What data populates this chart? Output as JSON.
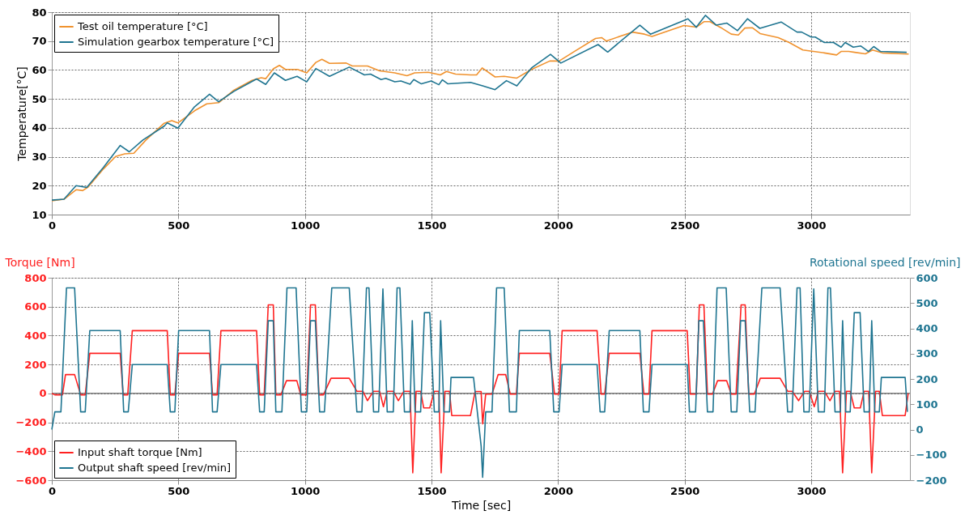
{
  "chart_data": [
    {
      "type": "line",
      "ylabel": "Temperature[°C]",
      "xlim": [
        0,
        3390
      ],
      "xticks": [
        0,
        500,
        1000,
        1500,
        2000,
        2500,
        3000
      ],
      "ylim": [
        10,
        80
      ],
      "yticks": [
        10,
        20,
        30,
        40,
        50,
        60,
        70,
        80
      ],
      "grid": true,
      "legend": "top left",
      "series": [
        {
          "name": "Test oil temperature [°C]",
          "color": "#f0922e",
          "x": [
            0,
            48,
            96,
            122,
            144,
            204,
            252,
            288,
            324,
            372,
            444,
            474,
            498,
            564,
            612,
            659,
            719,
            791,
            827,
            845,
            875,
            899,
            923,
            971,
            1007,
            1043,
            1067,
            1097,
            1163,
            1187,
            1247,
            1295,
            1355,
            1403,
            1433,
            1487,
            1535,
            1559,
            1595,
            1654,
            1678,
            1700,
            1751,
            1787,
            1837,
            1895,
            1967,
            2004,
            2064,
            2148,
            2172,
            2190,
            2293,
            2341,
            2371,
            2497,
            2546,
            2576,
            2600,
            2642,
            2684,
            2712,
            2738,
            2768,
            2798,
            2870,
            2913,
            2967,
            3052,
            3100,
            3118,
            3148,
            3172,
            3214,
            3242,
            3281,
            3385
          ],
          "values": [
            14.8,
            15.3,
            18.6,
            18.3,
            19.6,
            25.8,
            30.1,
            31,
            31.2,
            35.8,
            41.6,
            42.5,
            41.7,
            45.9,
            48.3,
            48.7,
            53,
            56.4,
            57.3,
            57,
            60.4,
            61.6,
            60.2,
            60.2,
            59,
            62.6,
            63.7,
            62.3,
            62.4,
            61.4,
            61.4,
            59.7,
            59,
            58,
            59,
            59.2,
            58.3,
            59.5,
            58.6,
            58.3,
            58.3,
            60.7,
            57.6,
            57.8,
            57.2,
            60.2,
            63.1,
            63.1,
            66.4,
            70.9,
            71.2,
            70,
            73.1,
            72.4,
            71.6,
            75.4,
            74.8,
            76.7,
            76.7,
            74.7,
            72.4,
            72.1,
            74.5,
            74.6,
            72.6,
            71.2,
            69.5,
            66.9,
            65.9,
            65.2,
            66.4,
            66.4,
            66.1,
            65.6,
            66.9,
            65.9,
            65.5
          ]
        },
        {
          "name": "Simulation gearbox temperature [°C]",
          "color": "#1f7591",
          "x": [
            0,
            48,
            96,
            138,
            204,
            270,
            306,
            360,
            444,
            456,
            498,
            564,
            623,
            659,
            719,
            809,
            845,
            879,
            923,
            969,
            1007,
            1043,
            1097,
            1175,
            1235,
            1259,
            1301,
            1319,
            1355,
            1379,
            1415,
            1430,
            1460,
            1499,
            1529,
            1543,
            1565,
            1654,
            1702,
            1751,
            1796,
            1837,
            1895,
            1970,
            2011,
            2158,
            2196,
            2323,
            2365,
            2513,
            2546,
            2582,
            2625,
            2667,
            2709,
            2748,
            2797,
            2881,
            2944,
            2962,
            3000,
            3016,
            3052,
            3088,
            3118,
            3134,
            3166,
            3196,
            3226,
            3247,
            3274,
            3377
          ],
          "values": [
            15,
            15.3,
            20,
            19.4,
            26.3,
            33.9,
            31.7,
            35.8,
            40.6,
            41.7,
            39.9,
            47.3,
            51.6,
            49,
            52.6,
            56.9,
            55,
            59,
            56.4,
            57.8,
            55.9,
            60.5,
            57.8,
            61,
            58.3,
            58.6,
            56.7,
            57.1,
            55.9,
            56.2,
            55.1,
            56.7,
            55.2,
            56.2,
            54.9,
            56.6,
            55.2,
            55.7,
            54.5,
            53.2,
            56.3,
            54.5,
            60.7,
            65.4,
            62.4,
            68.8,
            66.2,
            75.5,
            72.4,
            77.7,
            74.8,
            78.9,
            75.5,
            76.2,
            73.6,
            77.7,
            74.4,
            76.6,
            73.1,
            73.1,
            71.4,
            71.4,
            69.5,
            69.5,
            67.9,
            69.5,
            67.9,
            68.3,
            66.4,
            68.1,
            66.4,
            66.1
          ]
        }
      ]
    },
    {
      "type": "line",
      "xlabel": "Time [sec]",
      "ylabel": "Torque [Nm]",
      "y2label": "Rotational speed [rev/min]",
      "xlim": [
        0,
        3390
      ],
      "xticks": [
        0,
        500,
        1000,
        1500,
        2000,
        2500,
        3000
      ],
      "ylim": [
        -600,
        800
      ],
      "yticks": [
        -600,
        -400,
        -200,
        0,
        200,
        400,
        600,
        800
      ],
      "y2lim": [
        -200,
        600
      ],
      "y2ticks": [
        -200,
        -100,
        0,
        100,
        200,
        300,
        400,
        500,
        600
      ],
      "grid": true,
      "legend": "bottom left",
      "ref_lines": [
        {
          "axis": "y",
          "value": 0,
          "color": "#808080"
        }
      ],
      "series": [
        {
          "name": "Input shaft torque [Nm]",
          "color": "#ff2020",
          "axis": "y",
          "x": [
            0,
            12,
            42,
            54,
            90,
            114,
            132,
            150,
            270,
            282,
            300,
            318,
            456,
            468,
            486,
            501,
            623,
            635,
            653,
            668,
            809,
            821,
            839,
            855,
            875,
            885,
            905,
            927,
            968,
            983,
            1007,
            1022,
            1041,
            1055,
            1073,
            1103,
            1175,
            1205,
            1229,
            1247,
            1271,
            1295,
            1310,
            1325,
            1349,
            1369,
            1391,
            1415,
            1426,
            1439,
            1457,
            1469,
            1493,
            1511,
            1529,
            1538,
            1553,
            1571,
            1580,
            1654,
            1672,
            1696,
            1702,
            1714,
            1739,
            1763,
            1793,
            1811,
            1835,
            1847,
            1967,
            1986,
            2004,
            2016,
            2154,
            2170,
            2184,
            2202,
            2323,
            2339,
            2359,
            2371,
            2510,
            2522,
            2546,
            2558,
            2576,
            2590,
            2610,
            2630,
            2666,
            2684,
            2703,
            2723,
            2739,
            2753,
            2775,
            2799,
            2877,
            2907,
            2925,
            2950,
            2974,
            2992,
            3012,
            3028,
            3052,
            3074,
            3094,
            3112,
            3124,
            3139,
            3154,
            3170,
            3194,
            3209,
            3227,
            3239,
            3254,
            3269,
            3281,
            3371,
            3383
          ],
          "values": [
            0,
            -10,
            -10,
            130,
            130,
            -10,
            -10,
            277,
            277,
            -10,
            -10,
            434,
            434,
            -10,
            -10,
            277,
            277,
            -10,
            -10,
            434,
            434,
            -10,
            -10,
            612,
            612,
            -10,
            -10,
            88,
            88,
            -10,
            -10,
            612,
            612,
            -10,
            -10,
            105,
            105,
            15,
            15,
            -50,
            15,
            15,
            -92,
            15,
            15,
            -50,
            15,
            15,
            -549,
            15,
            15,
            -100,
            -100,
            15,
            15,
            -549,
            15,
            15,
            -153,
            -153,
            13,
            13,
            -210,
            -5,
            -5,
            130,
            130,
            -5,
            -5,
            277,
            277,
            -5,
            -5,
            434,
            434,
            -5,
            -5,
            277,
            277,
            -5,
            -5,
            434,
            434,
            -5,
            -5,
            612,
            612,
            -5,
            -5,
            88,
            88,
            -5,
            -5,
            612,
            612,
            -5,
            -5,
            105,
            105,
            15,
            15,
            -50,
            15,
            15,
            -92,
            15,
            15,
            -50,
            15,
            15,
            -549,
            15,
            15,
            -100,
            -100,
            15,
            15,
            -549,
            15,
            15,
            -153,
            -153,
            0
          ]
        },
        {
          "name": "Output shaft speed [rev/min]",
          "color": "#1f7591",
          "axis": "y2",
          "x": [
            0,
            12,
            36,
            58,
            90,
            114,
            132,
            150,
            270,
            284,
            302,
            318,
            456,
            468,
            486,
            501,
            623,
            635,
            653,
            668,
            809,
            821,
            839,
            855,
            875,
            885,
            909,
            929,
            965,
            986,
            1007,
            1022,
            1041,
            1058,
            1077,
            1106,
            1175,
            1205,
            1225,
            1243,
            1253,
            1271,
            1291,
            1308,
            1325,
            1349,
            1364,
            1375,
            1393,
            1415,
            1424,
            1435,
            1457,
            1472,
            1493,
            1511,
            1529,
            1536,
            1549,
            1571,
            1577,
            1666,
            1696,
            1702,
            1714,
            1739,
            1757,
            1787,
            1808,
            1835,
            1847,
            1967,
            1983,
            2004,
            2016,
            2154,
            2166,
            2184,
            2202,
            2323,
            2337,
            2359,
            2371,
            2510,
            2519,
            2543,
            2556,
            2574,
            2590,
            2612,
            2628,
            2664,
            2684,
            2706,
            2721,
            2739,
            2757,
            2778,
            2805,
            2877,
            2907,
            2925,
            2944,
            2956,
            2971,
            2992,
            3010,
            3028,
            3052,
            3066,
            3076,
            3094,
            3115,
            3124,
            3136,
            3154,
            3170,
            3193,
            3209,
            3229,
            3239,
            3251,
            3269,
            3277,
            3371,
            3380
          ],
          "values": [
            0,
            70,
            70,
            560,
            560,
            70,
            70,
            391,
            391,
            70,
            70,
            257,
            257,
            70,
            70,
            391,
            391,
            70,
            70,
            257,
            257,
            70,
            70,
            430,
            430,
            70,
            70,
            560,
            560,
            70,
            70,
            430,
            430,
            70,
            70,
            560,
            560,
            70,
            70,
            560,
            560,
            70,
            70,
            556,
            70,
            70,
            560,
            560,
            70,
            70,
            430,
            70,
            70,
            462,
            462,
            70,
            70,
            430,
            70,
            70,
            206,
            206,
            -65,
            -189,
            70,
            70,
            560,
            560,
            70,
            70,
            391,
            391,
            70,
            70,
            257,
            257,
            70,
            70,
            391,
            391,
            70,
            70,
            257,
            257,
            70,
            70,
            430,
            430,
            70,
            70,
            560,
            560,
            70,
            70,
            430,
            430,
            70,
            70,
            560,
            560,
            70,
            70,
            560,
            560,
            70,
            70,
            556,
            70,
            70,
            560,
            560,
            70,
            70,
            430,
            70,
            70,
            462,
            462,
            70,
            70,
            430,
            70,
            70,
            206,
            206,
            70
          ]
        }
      ]
    }
  ]
}
